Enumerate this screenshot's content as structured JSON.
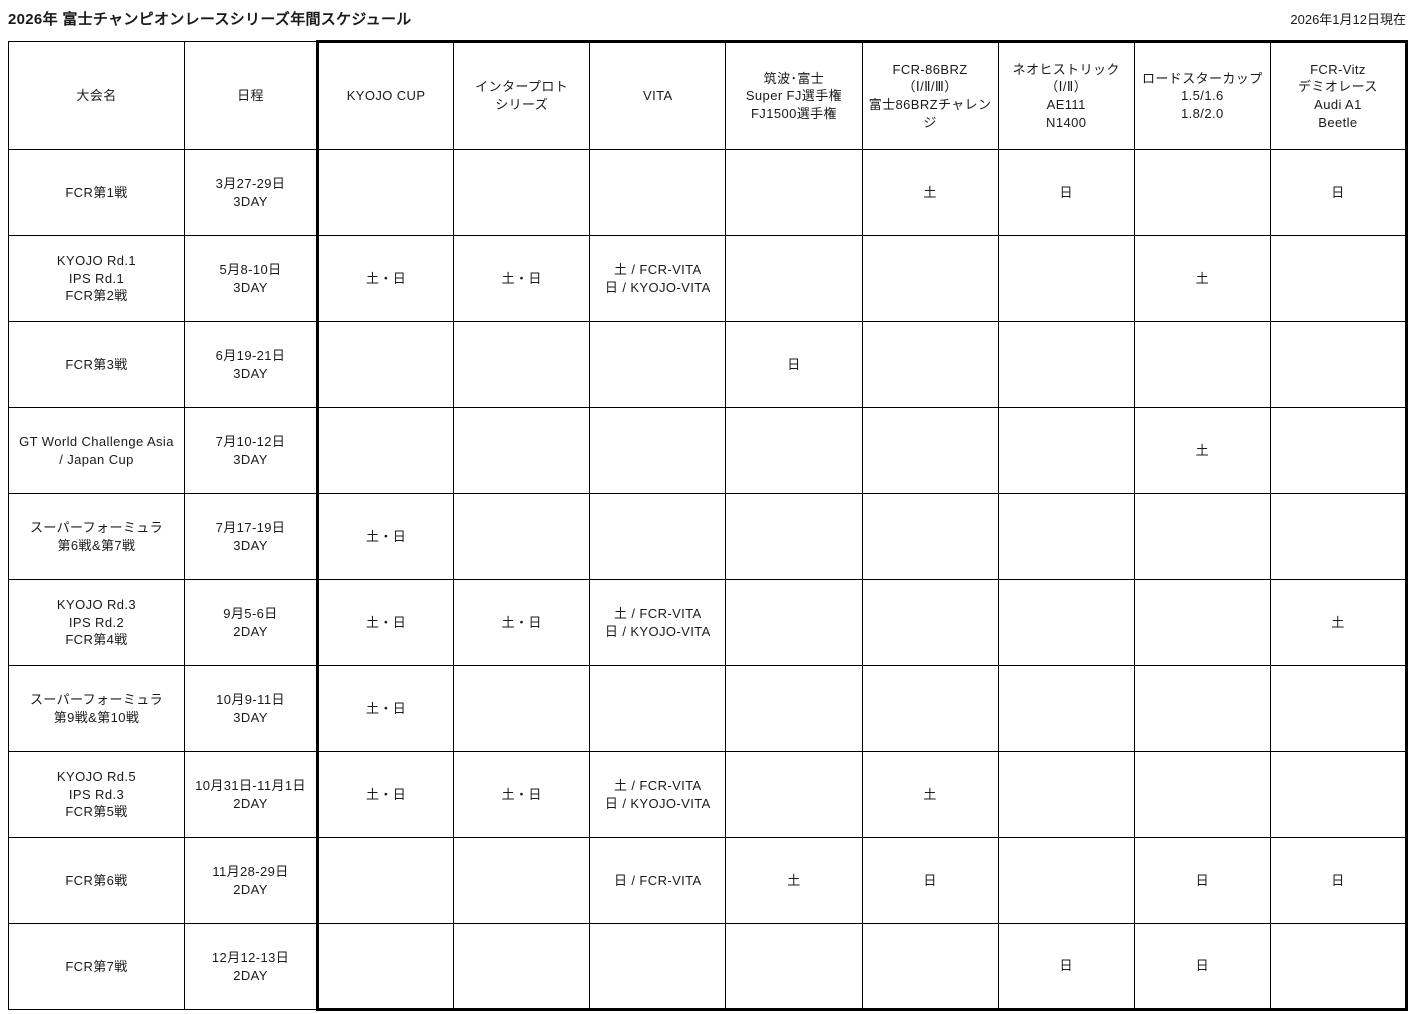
{
  "page": {
    "title": "2026年 富士チャンピオンレースシリーズ年間スケジュール",
    "as_of": "2026年1月12日現在"
  },
  "table": {
    "columns": [
      "大会名",
      "日程",
      "KYOJO CUP",
      "インタープロト\nシリーズ",
      "VITA",
      "筑波･富士\nSuper FJ選手権\nFJ1500選手権",
      "FCR-86BRZ\n（Ⅰ/Ⅱ/Ⅲ）\n富士86BRZチャレンジ",
      "ネオヒストリック\n（Ⅰ/Ⅱ）\nAE111\nN1400",
      "ロードスターカップ\n1.5/1.6\n1.8/2.0",
      "FCR-Vitz\nデミオレース\nAudi A1\nBeetle"
    ],
    "rows": [
      {
        "event": "FCR第1戦",
        "date": "3月27-29日\n3DAY",
        "cells": [
          "",
          "",
          "",
          "",
          "土",
          "日",
          "",
          "日"
        ]
      },
      {
        "event": "KYOJO Rd.1\nIPS Rd.1\nFCR第2戦",
        "date": "5月8-10日\n3DAY",
        "cells": [
          "土・日",
          "土・日",
          "土 / FCR-VITA\n日 / KYOJO-VITA",
          "",
          "",
          "",
          "土",
          ""
        ]
      },
      {
        "event": "FCR第3戦",
        "date": "6月19-21日\n3DAY",
        "cells": [
          "",
          "",
          "",
          "日",
          "",
          "",
          "",
          ""
        ]
      },
      {
        "event": "GT World Challenge Asia\n/ Japan Cup",
        "date": "7月10-12日\n3DAY",
        "cells": [
          "",
          "",
          "",
          "",
          "",
          "",
          "土",
          ""
        ]
      },
      {
        "event": "スーパーフォーミュラ\n第6戦&第7戦",
        "date": "7月17-19日\n3DAY",
        "cells": [
          "土・日",
          "",
          "",
          "",
          "",
          "",
          "",
          ""
        ]
      },
      {
        "event": "KYOJO Rd.3\nIPS Rd.2\nFCR第4戦",
        "date": "9月5-6日\n2DAY",
        "cells": [
          "土・日",
          "土・日",
          "土 / FCR-VITA\n日 / KYOJO-VITA",
          "",
          "",
          "",
          "",
          "土"
        ]
      },
      {
        "event": "スーパーフォーミュラ\n第9戦&第10戦",
        "date": "10月9-11日\n3DAY",
        "cells": [
          "土・日",
          "",
          "",
          "",
          "",
          "",
          "",
          ""
        ]
      },
      {
        "event": "KYOJO Rd.5\nIPS Rd.3\nFCR第5戦",
        "date": "10月31日-11月1日\n2DAY",
        "cells": [
          "土・日",
          "土・日",
          "土 / FCR-VITA\n日 / KYOJO-VITA",
          "",
          "土",
          "",
          "",
          ""
        ]
      },
      {
        "event": "FCR第6戦",
        "date": "11月28-29日\n2DAY",
        "cells": [
          "",
          "",
          "日 / FCR-VITA",
          "土",
          "日",
          "",
          "日",
          "日"
        ]
      },
      {
        "event": "FCR第7戦",
        "date": "12月12-13日\n2DAY",
        "cells": [
          "",
          "",
          "",
          "",
          "",
          "日",
          "日",
          ""
        ]
      }
    ]
  }
}
